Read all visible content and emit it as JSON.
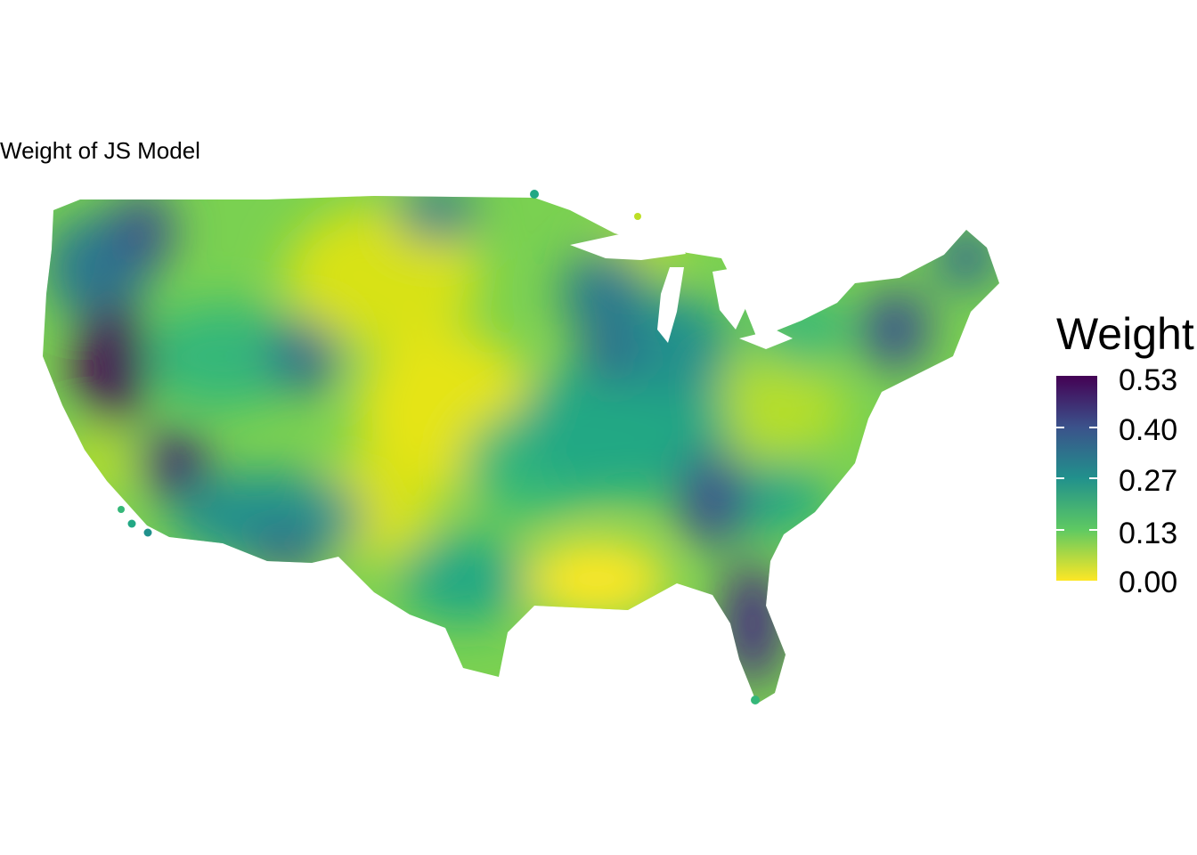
{
  "title": "Weight of JS Model",
  "legend": {
    "title": "Weight",
    "ticks": [
      "0.53",
      "0.40",
      "0.27",
      "0.13",
      "0.00"
    ],
    "range": [
      0.0,
      0.53
    ],
    "palette": "viridis (reversed: yellow = low, dark purple = high)"
  },
  "colors": {
    "low": "#fde725",
    "mid_low": "#5ec962",
    "mid": "#21918c",
    "mid_high": "#3b528b",
    "high": "#440154"
  }
}
